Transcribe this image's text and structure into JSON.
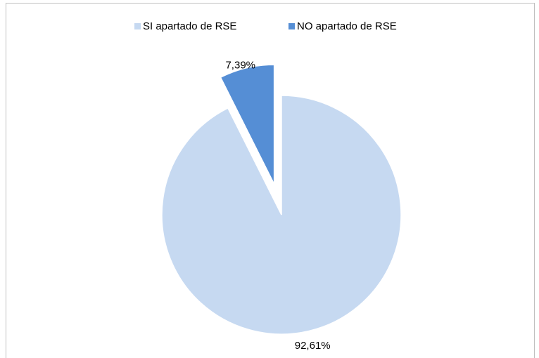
{
  "chart_data": {
    "type": "pie",
    "categories": [
      "SI apartado de RSE",
      "NO apartado de RSE"
    ],
    "values": [
      92.61,
      7.39
    ],
    "value_labels": [
      "92,61%",
      "7,39%"
    ],
    "colors": [
      "#c6d9f1",
      "#558ed5"
    ],
    "exploded": [
      false,
      true
    ],
    "legend": "top"
  }
}
